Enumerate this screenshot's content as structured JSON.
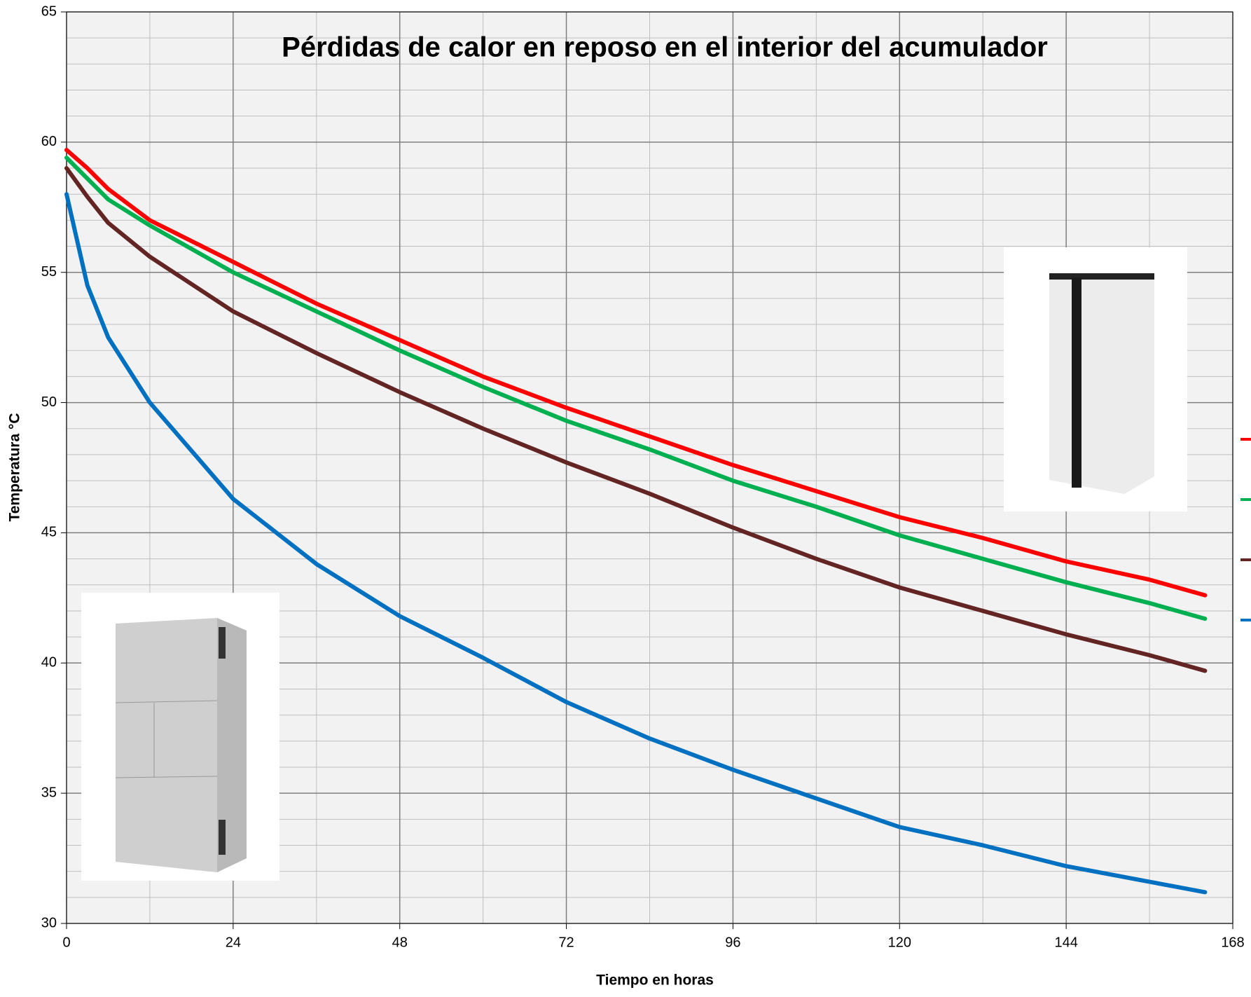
{
  "chart_data": {
    "type": "line",
    "title": "Pérdidas de calor en reposo en el interior del acumulador",
    "x_label": "Tiempo en horas",
    "y_label": "Temperatura °C",
    "x": [
      0,
      3,
      6,
      12,
      24,
      36,
      48,
      60,
      72,
      84,
      96,
      108,
      120,
      132,
      144,
      156,
      164
    ],
    "series": [
      {
        "color": "#ff0000",
        "values": [
          59.7,
          59.0,
          58.2,
          57.0,
          55.4,
          53.8,
          52.4,
          51.0,
          49.8,
          48.7,
          47.6,
          46.6,
          45.6,
          44.8,
          43.9,
          43.2,
          42.6
        ]
      },
      {
        "color": "#00b050",
        "values": [
          59.4,
          58.6,
          57.8,
          56.8,
          55.0,
          53.5,
          52.0,
          50.6,
          49.3,
          48.2,
          47.0,
          46.0,
          44.9,
          44.0,
          43.1,
          42.3,
          41.7
        ]
      },
      {
        "color": "#632523",
        "values": [
          59.0,
          57.9,
          56.9,
          55.6,
          53.5,
          51.9,
          50.4,
          49.0,
          47.7,
          46.5,
          45.2,
          44.0,
          42.9,
          42.0,
          41.1,
          40.3,
          39.7
        ]
      },
      {
        "color": "#0070c0",
        "values": [
          58.0,
          54.5,
          52.5,
          50.0,
          46.3,
          43.8,
          41.8,
          40.2,
          38.5,
          37.1,
          35.9,
          34.8,
          33.7,
          33.0,
          32.2,
          31.6,
          31.2
        ]
      }
    ],
    "xlim": [
      0,
      168
    ],
    "xticks": [
      0,
      24,
      48,
      72,
      96,
      120,
      144,
      168
    ],
    "ylim": [
      30,
      65
    ],
    "yticks": [
      30,
      35,
      40,
      45,
      50,
      55,
      60,
      65
    ],
    "grid": true
  }
}
